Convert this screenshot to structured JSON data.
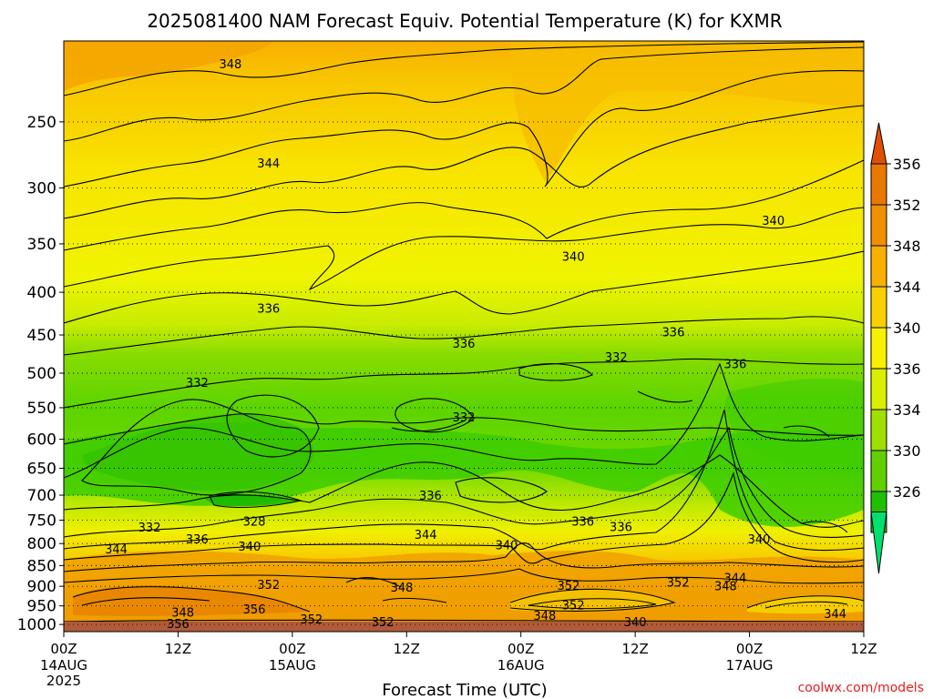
{
  "chart_data": {
    "type": "heatmap",
    "title": "2025081400 NAM Forecast Equiv. Potential Temperature (K) for KXMR",
    "xlabel": "Forecast Time (UTC)",
    "ylabel": "",
    "y_axis": {
      "ticks": [
        250,
        300,
        350,
        400,
        450,
        500,
        550,
        600,
        650,
        700,
        750,
        800,
        850,
        900,
        950,
        1000
      ],
      "range": [
        200,
        1020
      ],
      "scale": "log",
      "direction": "pressure decreasing upward"
    },
    "x_axis": {
      "range_hours": [
        0,
        84
      ],
      "ticks": [
        {
          "hour": 0,
          "label": "00Z",
          "sub": "14AUG",
          "sub2": "2025"
        },
        {
          "hour": 12,
          "label": "12Z",
          "sub": "",
          "sub2": ""
        },
        {
          "hour": 24,
          "label": "00Z",
          "sub": "15AUG",
          "sub2": ""
        },
        {
          "hour": 36,
          "label": "12Z",
          "sub": "",
          "sub2": ""
        },
        {
          "hour": 48,
          "label": "00Z",
          "sub": "16AUG",
          "sub2": ""
        },
        {
          "hour": 60,
          "label": "12Z",
          "sub": "",
          "sub2": ""
        },
        {
          "hour": 72,
          "label": "00Z",
          "sub": "17AUG",
          "sub2": ""
        },
        {
          "hour": 84,
          "label": "12Z",
          "sub": "",
          "sub2": ""
        }
      ]
    },
    "grid": "dotted horizontal at pressure ticks",
    "colorbar": {
      "labels": [
        356,
        352,
        348,
        344,
        340,
        336,
        334,
        330,
        326
      ],
      "colors": [
        "#e87800",
        "#f09000",
        "#f8b000",
        "#f8d000",
        "#f8f000",
        "#d8f000",
        "#a0e000",
        "#60d000",
        "#20c000"
      ],
      "arrow_top_color": "#e05000",
      "arrow_bottom_color": "#00e070"
    },
    "contour_labels": [
      {
        "text": "348",
        "hour": 17.5,
        "p": 213
      },
      {
        "text": "344",
        "hour": 21.5,
        "p": 280
      },
      {
        "text": "340",
        "hour": 74.5,
        "p": 328
      },
      {
        "text": "340",
        "hour": 53.5,
        "p": 362
      },
      {
        "text": "336",
        "hour": 21.5,
        "p": 418
      },
      {
        "text": "336",
        "hour": 42.0,
        "p": 460
      },
      {
        "text": "336",
        "hour": 64.0,
        "p": 446
      },
      {
        "text": "332",
        "hour": 58.0,
        "p": 478
      },
      {
        "text": "336",
        "hour": 70.5,
        "p": 487
      },
      {
        "text": "332",
        "hour": 14.0,
        "p": 513
      },
      {
        "text": "332",
        "hour": 42.0,
        "p": 564
      },
      {
        "text": "336",
        "hour": 38.5,
        "p": 700
      },
      {
        "text": "328",
        "hour": 20.0,
        "p": 752
      },
      {
        "text": "336",
        "hour": 54.5,
        "p": 752
      },
      {
        "text": "336",
        "hour": 58.5,
        "p": 763
      },
      {
        "text": "332",
        "hour": 9.0,
        "p": 764
      },
      {
        "text": "344",
        "hour": 38.0,
        "p": 780
      },
      {
        "text": "336",
        "hour": 14.0,
        "p": 790
      },
      {
        "text": "340",
        "hour": 73.0,
        "p": 790
      },
      {
        "text": "340",
        "hour": 19.5,
        "p": 806
      },
      {
        "text": "340",
        "hour": 46.5,
        "p": 803
      },
      {
        "text": "344",
        "hour": 5.5,
        "p": 812
      },
      {
        "text": "344",
        "hour": 70.5,
        "p": 878
      },
      {
        "text": "352",
        "hour": 64.5,
        "p": 890
      },
      {
        "text": "352",
        "hour": 21.5,
        "p": 895
      },
      {
        "text": "348",
        "hour": 69.5,
        "p": 898
      },
      {
        "text": "348",
        "hour": 35.5,
        "p": 902
      },
      {
        "text": "352",
        "hour": 53.0,
        "p": 897
      },
      {
        "text": "352",
        "hour": 53.5,
        "p": 947
      },
      {
        "text": "356",
        "hour": 20.0,
        "p": 958
      },
      {
        "text": "348",
        "hour": 12.5,
        "p": 967
      },
      {
        "text": "348",
        "hour": 50.5,
        "p": 975
      },
      {
        "text": "344",
        "hour": 81.0,
        "p": 970
      },
      {
        "text": "352",
        "hour": 26.0,
        "p": 985
      },
      {
        "text": "352",
        "hour": 33.5,
        "p": 992
      },
      {
        "text": "340",
        "hour": 60.0,
        "p": 992
      },
      {
        "text": "356",
        "hour": 12.0,
        "p": 997
      }
    ]
  },
  "credit": "coolwx.com/models"
}
